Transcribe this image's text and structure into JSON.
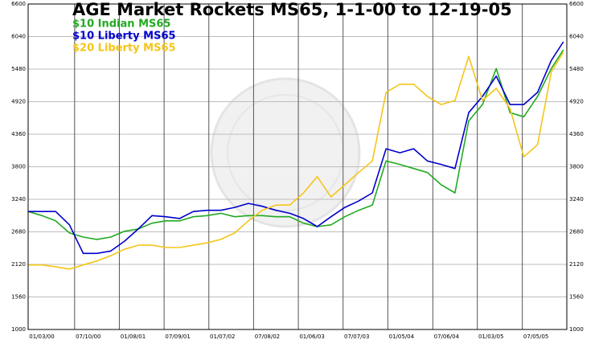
{
  "chart_data": {
    "type": "line",
    "title": "AGE Market Rockets MS65,  1-1-00 to 12-19-05",
    "x": [
      "01/03/00",
      "02/28/00",
      "04/24/00",
      "06/19/00",
      "08/14/00",
      "10/09/00",
      "12/04/00",
      "01/29/01",
      "03/26/01",
      "05/21/01",
      "07/16/01",
      "09/10/01",
      "11/05/01",
      "12/31/01",
      "02/25/02",
      "04/22/02",
      "06/17/02",
      "08/12/02",
      "10/07/02",
      "12/02/02",
      "01/27/03",
      "03/24/03",
      "05/19/03",
      "07/14/03",
      "09/08/03",
      "11/03/03",
      "12/29/03",
      "02/23/04",
      "04/19/04",
      "06/14/04",
      "08/09/04",
      "10/04/04",
      "11/29/04",
      "01/24/05",
      "03/21/05",
      "05/16/05",
      "07/11/05",
      "09/05/05",
      "10/31/05",
      "12/19/05"
    ],
    "series": [
      {
        "name": "$10 Indian MS65",
        "color": "#22aa22",
        "values": [
          3030,
          2960,
          2870,
          2660,
          2590,
          2550,
          2590,
          2690,
          2730,
          2830,
          2870,
          2870,
          2940,
          2960,
          3000,
          2940,
          2960,
          2960,
          2940,
          2940,
          2830,
          2770,
          2800,
          2940,
          3050,
          3140,
          3900,
          3840,
          3770,
          3700,
          3490,
          3350,
          4590,
          4870,
          5490,
          4730,
          4660,
          5010,
          5490,
          5810
        ]
      },
      {
        "name": "$10 Liberty MS65",
        "color": "#0000cc",
        "values": [
          3030,
          3030,
          3030,
          2800,
          2310,
          2310,
          2350,
          2520,
          2730,
          2960,
          2940,
          2910,
          3030,
          3050,
          3050,
          3100,
          3170,
          3120,
          3050,
          3000,
          2910,
          2770,
          2940,
          3100,
          3210,
          3350,
          4110,
          4040,
          4110,
          3900,
          3840,
          3770,
          4730,
          5010,
          5360,
          4870,
          4870,
          5080,
          5630,
          5950
        ]
      },
      {
        "name": "$20 Liberty MS65",
        "color": "#f5c518",
        "values": [
          2110,
          2110,
          2080,
          2040,
          2110,
          2180,
          2270,
          2380,
          2450,
          2450,
          2410,
          2410,
          2450,
          2490,
          2550,
          2660,
          2870,
          3050,
          3140,
          3140,
          3350,
          3630,
          3280,
          3490,
          3700,
          3900,
          5080,
          5220,
          5220,
          5010,
          4870,
          4940,
          5700,
          4940,
          5150,
          4800,
          3970,
          4180,
          5430,
          5770
        ]
      }
    ],
    "ylim": [
      1000,
      6600
    ],
    "yticks": [
      1000,
      1560,
      2120,
      2680,
      3240,
      3800,
      4360,
      4920,
      5480,
      6040,
      6600
    ],
    "xlim": [
      "01/03/00",
      "01/02/06"
    ],
    "xticks": [
      "01/03/00",
      "07/10/00",
      "01/08/01",
      "07/09/01",
      "01/07/02",
      "07/08/02",
      "01/06/03",
      "07/07/03",
      "01/05/04",
      "07/06/04",
      "01/03/05",
      "07/05/05"
    ],
    "grid": true
  }
}
